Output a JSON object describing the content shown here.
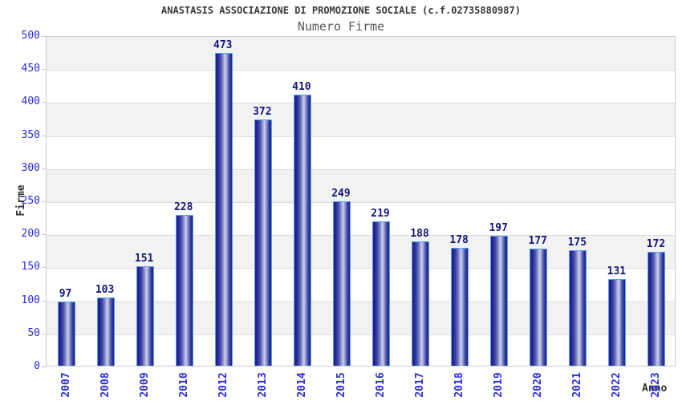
{
  "chart_data": {
    "type": "bar",
    "title": "ANASTASIS ASSOCIAZIONE DI PROMOZIONE SOCIALE (c.f.02735880987)",
    "subtitle": "Numero Firme",
    "xlabel": "Anno",
    "ylabel": "Firme",
    "categories": [
      "2007",
      "2008",
      "2009",
      "2010",
      "2012",
      "2013",
      "2014",
      "2015",
      "2016",
      "2017",
      "2018",
      "2019",
      "2020",
      "2021",
      "2022",
      "2023"
    ],
    "values": [
      97,
      103,
      151,
      228,
      473,
      372,
      410,
      249,
      219,
      188,
      178,
      197,
      177,
      175,
      131,
      172
    ],
    "ylim": [
      0,
      500
    ],
    "ytick_step": 50,
    "ytick_labels": [
      "0",
      "50",
      "100",
      "150",
      "200",
      "250",
      "300",
      "350",
      "400",
      "450",
      "500"
    ],
    "grid": true,
    "legend_position": "none",
    "plot_background": "alternating horizontal bands"
  },
  "colors": {
    "title": "#3a3a3a",
    "subtitle": "#595959",
    "axis_tick_label": "#2b2bd9",
    "value_label": "#15157d",
    "axis_title": "#333333",
    "band_gray": "#f2f2f2",
    "band_white": "#ffffff",
    "gridline": "#dcdcdc",
    "plot_border": "#cccccc",
    "bar_border": "#55a0f5",
    "bar_dark": "#1f1f8a",
    "bar_light": "#ccd2f0",
    "background": "#ffffff"
  }
}
